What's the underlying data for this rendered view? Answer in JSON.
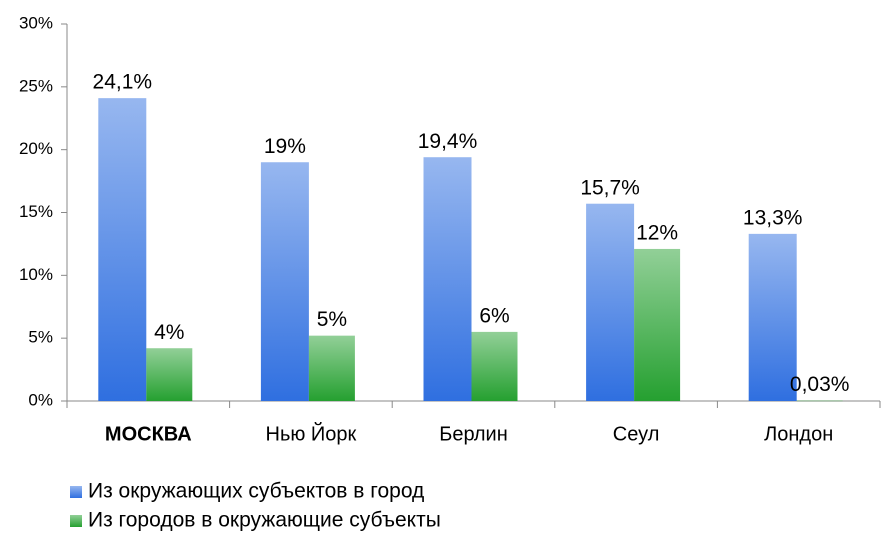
{
  "chart_data": {
    "type": "bar",
    "categories": [
      "МОСКВА",
      "Нью Йорк",
      "Берлин",
      "Сеул",
      "Лондон"
    ],
    "series": [
      {
        "name": "Из окружающих субъектов в город",
        "color": "#2f6fe0",
        "values": [
          24.1,
          19,
          19.4,
          15.7,
          13.3
        ],
        "value_labels": [
          "24,1%",
          "19%",
          "19,4%",
          "15,7%",
          "13,3%"
        ]
      },
      {
        "name": "Из городов в окружающие субъекты",
        "color": "#25a030",
        "values": [
          4.2,
          5.2,
          5.5,
          12.1,
          0.03
        ],
        "value_labels": [
          "4%",
          "5%",
          "6%",
          "12%",
          "0,03%"
        ]
      }
    ],
    "ylim": [
      0,
      30
    ],
    "yticks": [
      {
        "value": 0,
        "label": "0%"
      },
      {
        "value": 5,
        "label": "5%"
      },
      {
        "value": 10,
        "label": "10%"
      },
      {
        "value": 15,
        "label": "15%"
      },
      {
        "value": 20,
        "label": "20%"
      },
      {
        "value": 25,
        "label": "25%"
      },
      {
        "value": 30,
        "label": "30%"
      }
    ],
    "grid": false,
    "legend": "bottom"
  }
}
